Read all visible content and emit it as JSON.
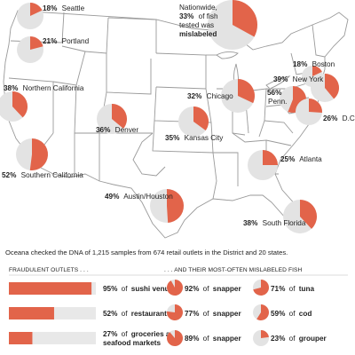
{
  "colors": {
    "fish_red": "#e2644a",
    "pie_grey": "#e3e3e3",
    "bar_grey": "#e8e8e8",
    "map_line": "#9a9a9a"
  },
  "nationwide": {
    "line1": "Nationwide,",
    "pct": "33%",
    "line2_rest": "of fish",
    "line3": "tested was",
    "line4": "mislabeled",
    "value": 33
  },
  "cities": [
    {
      "pct": "18%",
      "name": "Seattle",
      "value": 18
    },
    {
      "pct": "21%",
      "name": "Portland",
      "value": 21
    },
    {
      "pct": "38%",
      "name": "Northern California",
      "value": 38
    },
    {
      "pct": "52%",
      "name": "Southern California",
      "value": 52
    },
    {
      "pct": "36%",
      "name": "Denver",
      "value": 36
    },
    {
      "pct": "35%",
      "name": "Kansas City",
      "value": 35
    },
    {
      "pct": "32%",
      "name": "Chicago",
      "value": 32
    },
    {
      "pct": "49%",
      "name": "Austin/Houston",
      "value": 49
    },
    {
      "pct": "25%",
      "name": "Atlanta",
      "value": 25
    },
    {
      "pct": "38%",
      "name": "South Florida",
      "value": 38
    },
    {
      "pct": "18%",
      "name": "Boston",
      "value": 18
    },
    {
      "pct": "39%",
      "name": "New York",
      "value": 39
    },
    {
      "pct": "56%",
      "name": "Penn.",
      "value": 56
    },
    {
      "pct": "26%",
      "name": "D.C.",
      "value": 26
    }
  ],
  "info_text": "Oceana checked the DNA of 1,215 samples from 674 retail outlets in the District and 20 states.",
  "headers": {
    "left": "FRAUDULENT OUTLETS . . .",
    "right": ". . . AND THEIR MOST-OFTEN MISLABELED FISH"
  },
  "outlets": [
    {
      "pct": "95%",
      "of": "of",
      "name": "sushi venues",
      "name2": "",
      "value": 95,
      "fish": [
        {
          "pct": "92%",
          "name": "snapper",
          "value": 92
        },
        {
          "pct": "71%",
          "name": "tuna",
          "value": 71
        }
      ]
    },
    {
      "pct": "52%",
      "of": "of",
      "name": "restaurants",
      "name2": "",
      "value": 52,
      "fish": [
        {
          "pct": "77%",
          "name": "snapper",
          "value": 77
        },
        {
          "pct": "59%",
          "name": "cod",
          "value": 59
        }
      ]
    },
    {
      "pct": "27%",
      "of": "of",
      "name": "groceries and",
      "name2": "seafood markets",
      "value": 27,
      "fish": [
        {
          "pct": "89%",
          "name": "snapper",
          "value": 89
        },
        {
          "pct": "23%",
          "name": "grouper",
          "value": 23
        }
      ]
    }
  ]
}
